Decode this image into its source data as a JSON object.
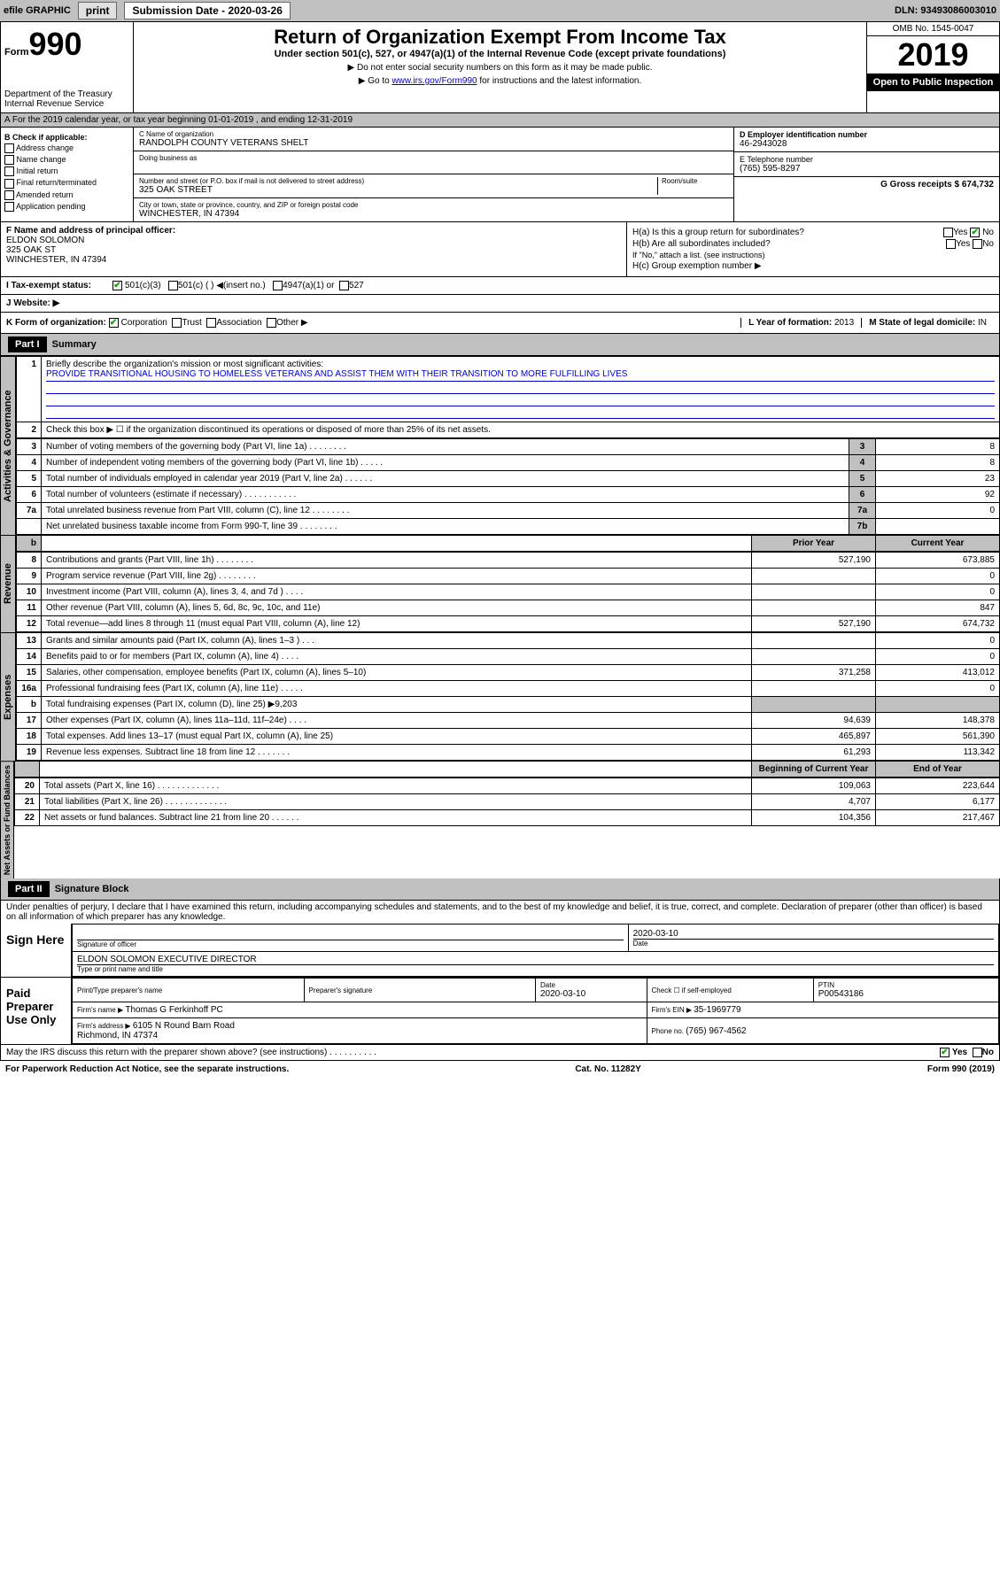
{
  "topbar": {
    "efile": "efile GRAPHIC",
    "print": "print",
    "subdate_label": "Submission Date - ",
    "subdate": "2020-03-26",
    "dln_label": "DLN: ",
    "dln": "93493086003010"
  },
  "header": {
    "form_label": "Form",
    "form_no": "990",
    "dept": "Department of the Treasury\nInternal Revenue Service",
    "title": "Return of Organization Exempt From Income Tax",
    "sub": "Under section 501(c), 527, or 4947(a)(1) of the Internal Revenue Code (except private foundations)",
    "note1": "▶ Do not enter social security numbers on this form as it may be made public.",
    "note2_pre": "▶ Go to ",
    "note2_link": "www.irs.gov/Form990",
    "note2_post": " for instructions and the latest information.",
    "omb": "OMB No. 1545-0047",
    "year": "2019",
    "open": "Open to Public Inspection"
  },
  "row_a": "A For the 2019 calendar year, or tax year beginning 01-01-2019   , and ending 12-31-2019",
  "col_b": {
    "hdr": "B Check if applicable:",
    "items": [
      "Address change",
      "Name change",
      "Initial return",
      "Final return/terminated",
      "Amended return",
      "Application pending"
    ]
  },
  "col_c": {
    "name_label": "C Name of organization",
    "name": "RANDOLPH COUNTY VETERANS SHELT",
    "dba_label": "Doing business as",
    "addr_label": "Number and street (or P.O. box if mail is not delivered to street address)",
    "room_label": "Room/suite",
    "addr": "325 OAK STREET",
    "city_label": "City or town, state or province, country, and ZIP or foreign postal code",
    "city": "WINCHESTER, IN  47394"
  },
  "col_de": {
    "d_label": "D Employer identification number",
    "d_val": "46-2943028",
    "e_label": "E Telephone number",
    "e_val": "(765) 595-8297",
    "g_label": "G Gross receipts $ ",
    "g_val": "674,732"
  },
  "col_f": {
    "label": "F  Name and address of principal officer:",
    "name": "ELDON SOLOMON",
    "addr1": "325 OAK ST",
    "addr2": "WINCHESTER, IN  47394"
  },
  "col_h": {
    "ha": "H(a)  Is this a group return for subordinates?",
    "hb": "H(b)  Are all subordinates included?",
    "hb_note": "If \"No,\" attach a list. (see instructions)",
    "hc": "H(c)  Group exemption number ▶",
    "yes": "Yes",
    "no": "No"
  },
  "row_i": {
    "label": "I   Tax-exempt status:",
    "opts": [
      "501(c)(3)",
      "501(c) (  ) ◀(insert no.)",
      "4947(a)(1) or",
      "527"
    ]
  },
  "row_j": "J   Website: ▶",
  "row_k": {
    "label": "K Form of organization:",
    "opts": [
      "Corporation",
      "Trust",
      "Association",
      "Other ▶"
    ],
    "l_label": "L Year of formation: ",
    "l_val": "2013",
    "m_label": "M State of legal domicile: ",
    "m_val": "IN"
  },
  "part1": {
    "hdr": "Part I",
    "title": "Summary",
    "side1": "Activities & Governance",
    "side2": "Revenue",
    "side3": "Expenses",
    "side4": "Net Assets or Fund Balances",
    "l1": "Briefly describe the organization's mission or most significant activities:",
    "mission": "PROVIDE TRANSITIONAL HOUSING TO HOMELESS VETERANS AND ASSIST THEM WITH THEIR TRANSITION TO MORE FULFILLING LIVES",
    "l2": "Check this box ▶ ☐  if the organization discontinued its operations or disposed of more than 25% of its net assets.",
    "rows_gov": [
      {
        "n": "3",
        "t": "Number of voting members of the governing body (Part VI, line 1a)  .   .   .   .   .   .   .   .",
        "b": "3",
        "v": "8"
      },
      {
        "n": "4",
        "t": "Number of independent voting members of the governing body (Part VI, line 1b)   .   .   .   .   .",
        "b": "4",
        "v": "8"
      },
      {
        "n": "5",
        "t": "Total number of individuals employed in calendar year 2019 (Part V, line 2a)   .   .   .   .   .   .",
        "b": "5",
        "v": "23"
      },
      {
        "n": "6",
        "t": "Total number of volunteers (estimate if necessary)   .   .   .   .   .   .   .   .   .   .   .",
        "b": "6",
        "v": "92"
      },
      {
        "n": "7a",
        "t": "Total unrelated business revenue from Part VIII, column (C), line 12   .   .   .   .   .   .   .   .",
        "b": "7a",
        "v": "0"
      },
      {
        "n": "",
        "t": "Net unrelated business taxable income from Form 990-T, line 39   .   .   .   .   .   .   .   .",
        "b": "7b",
        "v": ""
      }
    ],
    "col_hdr_prior": "Prior Year",
    "col_hdr_curr": "Current Year",
    "rows_rev": [
      {
        "n": "8",
        "t": "Contributions and grants (Part VIII, line 1h)   .   .   .   .   .   .   .   .",
        "p": "527,190",
        "c": "673,885"
      },
      {
        "n": "9",
        "t": "Program service revenue (Part VIII, line 2g)   .   .   .   .   .   .   .   .",
        "p": "",
        "c": "0"
      },
      {
        "n": "10",
        "t": "Investment income (Part VIII, column (A), lines 3, 4, and 7d )   .   .   .   .",
        "p": "",
        "c": "0"
      },
      {
        "n": "11",
        "t": "Other revenue (Part VIII, column (A), lines 5, 6d, 8c, 9c, 10c, and 11e)",
        "p": "",
        "c": "847"
      },
      {
        "n": "12",
        "t": "Total revenue—add lines 8 through 11 (must equal Part VIII, column (A), line 12)",
        "p": "527,190",
        "c": "674,732"
      }
    ],
    "rows_exp": [
      {
        "n": "13",
        "t": "Grants and similar amounts paid (Part IX, column (A), lines 1–3 )   .   .   .",
        "p": "",
        "c": "0"
      },
      {
        "n": "14",
        "t": "Benefits paid to or for members (Part IX, column (A), line 4)   .   .   .   .",
        "p": "",
        "c": "0"
      },
      {
        "n": "15",
        "t": "Salaries, other compensation, employee benefits (Part IX, column (A), lines 5–10)",
        "p": "371,258",
        "c": "413,012"
      },
      {
        "n": "16a",
        "t": "Professional fundraising fees (Part IX, column (A), line 11e)   .   .   .   .   .",
        "p": "",
        "c": "0"
      },
      {
        "n": "b",
        "t": "Total fundraising expenses (Part IX, column (D), line 25) ▶9,203",
        "p": "—",
        "c": "—"
      },
      {
        "n": "17",
        "t": "Other expenses (Part IX, column (A), lines 11a–11d, 11f–24e)   .   .   .   .",
        "p": "94,639",
        "c": "148,378"
      },
      {
        "n": "18",
        "t": "Total expenses. Add lines 13–17 (must equal Part IX, column (A), line 25)",
        "p": "465,897",
        "c": "561,390"
      },
      {
        "n": "19",
        "t": "Revenue less expenses. Subtract line 18 from line 12   .   .   .   .   .   .   .",
        "p": "61,293",
        "c": "113,342"
      }
    ],
    "col_hdr_beg": "Beginning of Current Year",
    "col_hdr_end": "End of Year",
    "rows_net": [
      {
        "n": "20",
        "t": "Total assets (Part X, line 16)   .   .   .   .   .   .   .   .   .   .   .   .   .",
        "p": "109,063",
        "c": "223,644"
      },
      {
        "n": "21",
        "t": "Total liabilities (Part X, line 26)  .   .   .   .   .   .   .   .   .   .   .   .   .",
        "p": "4,707",
        "c": "6,177"
      },
      {
        "n": "22",
        "t": "Net assets or fund balances. Subtract line 21 from line 20   .   .   .   .   .   .",
        "p": "104,356",
        "c": "217,467"
      }
    ]
  },
  "part2": {
    "hdr": "Part II",
    "title": "Signature Block",
    "perjury": "Under penalties of perjury, I declare that I have examined this return, including accompanying schedules and statements, and to the best of my knowledge and belief, it is true, correct, and complete. Declaration of preparer (other than officer) is based on all information of which preparer has any knowledge.",
    "sign_here": "Sign Here",
    "sig_officer": "Signature of officer",
    "sig_date": "2020-03-10",
    "date_label": "Date",
    "typed": "ELDON SOLOMON  EXECUTIVE DIRECTOR",
    "typed_label": "Type or print name and title",
    "paid": "Paid Preparer Use Only",
    "prep_name_label": "Print/Type preparer's name",
    "prep_sig_label": "Preparer's signature",
    "prep_date": "2020-03-10",
    "check_label": "Check ☐ if self-employed",
    "ptin_label": "PTIN",
    "ptin": "P00543186",
    "firm_name_label": "Firm's name      ▶ ",
    "firm_name": "Thomas G Ferkinhoff PC",
    "firm_ein_label": "Firm's EIN ▶ ",
    "firm_ein": "35-1969779",
    "firm_addr_label": "Firm's address ▶ ",
    "firm_addr": "6105 N Round Barn Road\nRichmond, IN  47374",
    "phone_label": "Phone no. ",
    "phone": "(765) 967-4562",
    "discuss": "May the IRS discuss this return with the preparer shown above? (see instructions)   .   .   .   .   .   .   .   .   .   .",
    "yes": "Yes",
    "no": "No"
  },
  "footer": {
    "left": "For Paperwork Reduction Act Notice, see the separate instructions.",
    "mid": "Cat. No. 11282Y",
    "right": "Form 990 (2019)"
  }
}
